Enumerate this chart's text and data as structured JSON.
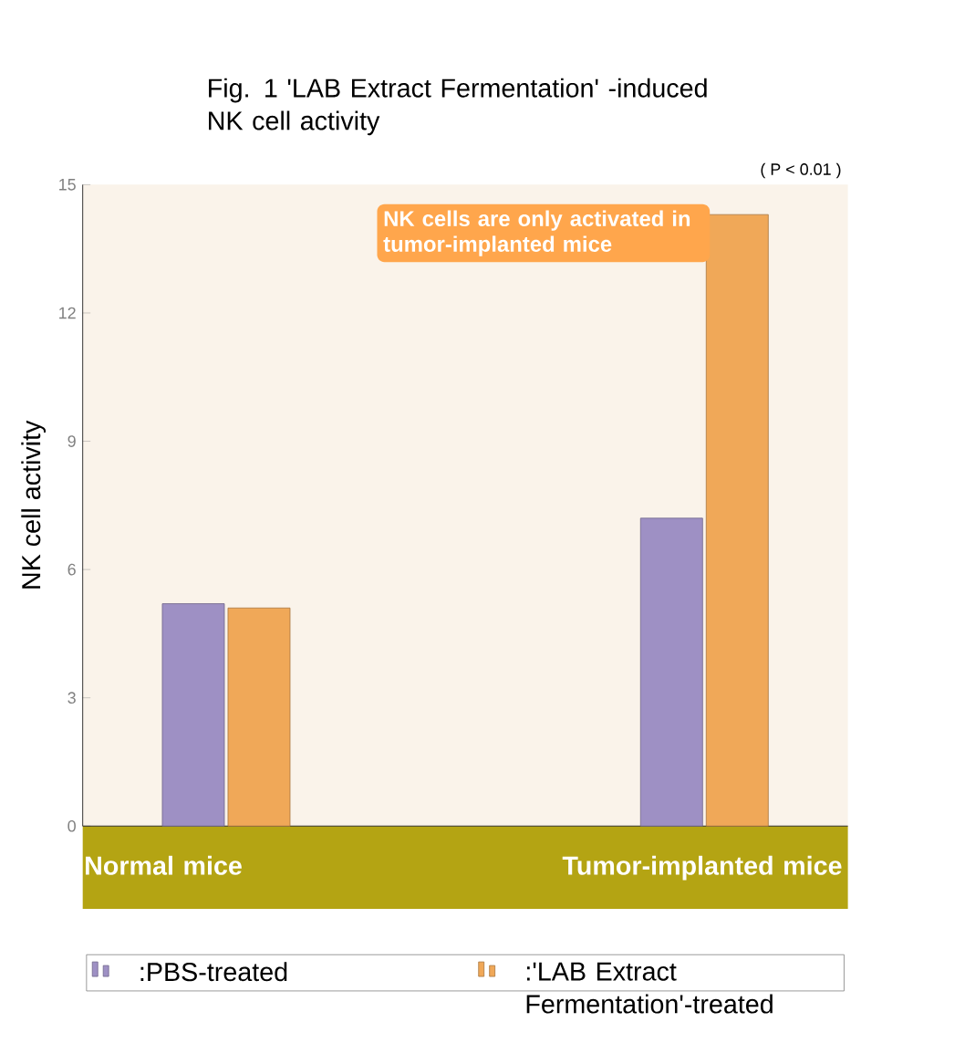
{
  "chart_data": {
    "type": "bar",
    "title": "Fig. 1  'LAB Extract Fermentation' -induced NK cell activity",
    "ylabel": "NK cell activity",
    "categories": [
      "Normal mice",
      "Tumor-implanted mice"
    ],
    "series": [
      {
        "name": ":PBS-treated",
        "color": "#9e90c4",
        "values": [
          5.2,
          7.2
        ]
      },
      {
        "name": ":'LAB Extract Fermentation'-treated",
        "color": "#f0a858",
        "values": [
          5.1,
          14.3
        ]
      }
    ],
    "ylim": [
      0,
      15
    ],
    "yticks": [
      0,
      3,
      6,
      9,
      12,
      15
    ],
    "legend": "bottom",
    "annotations": [
      "( P < 0.01 )",
      "NK cells are only activated in tumor-implanted mice"
    ]
  }
}
